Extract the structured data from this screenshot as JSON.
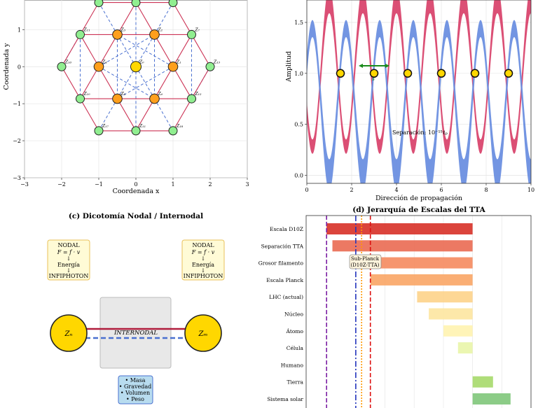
{
  "chart_data": [
    {
      "type": "scatter",
      "panel": "a",
      "title": "",
      "xlabel": "Coordenada x",
      "ylabel": "Coordenada y",
      "xlim": [
        -3,
        3
      ],
      "ylim": [
        -3,
        1.8
      ],
      "xticks": [
        "−3",
        "−2",
        "−1",
        "0",
        "1",
        "2",
        "3"
      ],
      "yticks": [
        "−3",
        "−2",
        "−1",
        "0",
        "1"
      ],
      "colors": {
        "center": "#ffd700",
        "inner": "#ff9f1c",
        "outer": "#90ee90",
        "triangle": "#cc3355",
        "dashed": "#4a70d0"
      },
      "nodes": [
        {
          "id": "Z0",
          "label": "Z₀",
          "x": 0,
          "y": 0,
          "ring": "center"
        },
        {
          "id": "Z1",
          "label": "Z₁",
          "x": 1,
          "y": 0,
          "ring": "inner"
        },
        {
          "id": "Z2",
          "label": "Z₂",
          "x": 0.5,
          "y": 0.866,
          "ring": "inner"
        },
        {
          "id": "Z3",
          "label": "Z₃",
          "x": -0.5,
          "y": 0.866,
          "ring": "inner"
        },
        {
          "id": "Z4",
          "label": "Z₄",
          "x": -1,
          "y": 0,
          "ring": "inner"
        },
        {
          "id": "Z5",
          "label": "Z₅",
          "x": -0.5,
          "y": -0.866,
          "ring": "inner"
        },
        {
          "id": "Z6",
          "label": "Z₆",
          "x": 0.5,
          "y": -0.866,
          "ring": "inner"
        },
        {
          "id": "Z7",
          "label": "Z₇",
          "x": 1.5,
          "y": 0.866,
          "ring": "outer"
        },
        {
          "id": "Z8",
          "label": "Z₈",
          "x": 1,
          "y": 1.732,
          "ring": "outer"
        },
        {
          "id": "Z9",
          "label": "Z₉",
          "x": 0,
          "y": 1.732,
          "ring": "outer"
        },
        {
          "id": "Z10",
          "label": "Z₁₀",
          "x": -1,
          "y": 1.732,
          "ring": "outer"
        },
        {
          "id": "Z11",
          "label": "Z₁₁",
          "x": -1.5,
          "y": 0.866,
          "ring": "outer"
        },
        {
          "id": "Z12",
          "label": "Z₁₂",
          "x": 1.5,
          "y": -0.866,
          "ring": "outer"
        },
        {
          "id": "Z13",
          "label": "Z₁₃",
          "x": 2,
          "y": 0,
          "ring": "outer"
        },
        {
          "id": "Z16",
          "label": "Z₁₆",
          "x": -2,
          "y": 0,
          "ring": "outer"
        },
        {
          "id": "Z10b",
          "label": "Z₁₀",
          "x": -1.5,
          "y": -0.866,
          "ring": "outer"
        },
        {
          "id": "Z17",
          "label": "Z₁₇",
          "x": -1,
          "y": -1.732,
          "ring": "outer"
        },
        {
          "id": "Z11b",
          "label": "Z₁₁",
          "x": 0,
          "y": -1.732,
          "ring": "outer"
        },
        {
          "id": "Z18",
          "label": "Z₁₈",
          "x": 1,
          "y": -1.732,
          "ring": "outer"
        }
      ],
      "solid_edges": [
        [
          "Z2",
          "Z3"
        ],
        [
          "Z3",
          "Z4"
        ],
        [
          "Z4",
          "Z5"
        ],
        [
          "Z5",
          "Z6"
        ],
        [
          "Z6",
          "Z1"
        ],
        [
          "Z1",
          "Z2"
        ],
        [
          "Z3",
          "Z9"
        ],
        [
          "Z9",
          "Z2"
        ],
        [
          "Z2",
          "Z7"
        ],
        [
          "Z7",
          "Z1"
        ],
        [
          "Z1",
          "Z12"
        ],
        [
          "Z12",
          "Z6"
        ],
        [
          "Z6",
          "Z11b"
        ],
        [
          "Z11b",
          "Z5"
        ],
        [
          "Z5",
          "Z10b"
        ],
        [
          "Z10b",
          "Z4"
        ],
        [
          "Z4",
          "Z11"
        ],
        [
          "Z11",
          "Z3"
        ],
        [
          "Z9",
          "Z10"
        ],
        [
          "Z9",
          "Z8"
        ],
        [
          "Z7",
          "Z13"
        ],
        [
          "Z13",
          "Z12"
        ],
        [
          "Z11b",
          "Z18"
        ],
        [
          "Z11b",
          "Z17"
        ],
        [
          "Z11",
          "Z16"
        ],
        [
          "Z16",
          "Z10b"
        ],
        [
          "Z12",
          "Z18"
        ],
        [
          "Z10b",
          "Z17"
        ],
        [
          "Z7",
          "Z8"
        ],
        [
          "Z11",
          "Z10"
        ]
      ],
      "dashed_edges": [
        [
          "Z0",
          "Z2"
        ],
        [
          "Z0",
          "Z3"
        ],
        [
          "Z0",
          "Z5"
        ],
        [
          "Z0",
          "Z6"
        ],
        [
          "Z3",
          "Z5"
        ],
        [
          "Z2",
          "Z6"
        ],
        [
          "Z4",
          "Z2"
        ],
        [
          "Z4",
          "Z6"
        ],
        [
          "Z1",
          "Z3"
        ],
        [
          "Z1",
          "Z5"
        ],
        [
          "Z10",
          "Z3"
        ],
        [
          "Z8",
          "Z2"
        ],
        [
          "Z11",
          "Z16"
        ],
        [
          "Z12",
          "Z13"
        ],
        [
          "Z17",
          "Z5"
        ],
        [
          "Z18",
          "Z6"
        ],
        [
          "Z11",
          "Z10b"
        ],
        [
          "Z7",
          "Z12"
        ],
        [
          "Z9",
          "Z0"
        ],
        [
          "Z0",
          "Z11b"
        ]
      ]
    },
    {
      "type": "line",
      "panel": "b",
      "title": "",
      "xlabel": "Dirección de propagación",
      "ylabel": "Amplitud",
      "xlim": [
        0,
        10
      ],
      "ylim": [
        -0.08,
        1.72
      ],
      "xticks": [
        "0",
        "2",
        "4",
        "6",
        "8",
        "10"
      ],
      "yticks": [
        "0.0",
        "0.5",
        "1.0",
        "1.5"
      ],
      "series": [
        {
          "name": "red",
          "color": "#d9466e",
          "center": 1.0,
          "amplitude": 0.72,
          "period": 1.5,
          "phase": 1.0,
          "band": 0.05
        },
        {
          "name": "blue",
          "color": "#6c8fe0",
          "center": 0.72,
          "amplitude": -0.72,
          "period": 1.5,
          "phase": 1.0,
          "band": 0.06
        }
      ],
      "points": {
        "x": [
          1.5,
          3.0,
          4.5,
          6.0,
          7.5,
          9.0
        ],
        "y": 1.0
      },
      "separation_label": "Separación: 10⁻¹⁵ℓₚ",
      "arrow_label": "s"
    },
    {
      "type": "diagram",
      "panel": "c",
      "title": "(c) Dicotomía Nodal / Internodal",
      "box_text": [
        "NODAL",
        "F = f · v",
        "↓",
        "Energía",
        "↓",
        "INFIPHOTON"
      ],
      "left_node": "Zₙ",
      "right_node": "Zₘ",
      "internodal_label": "INTERNODAL",
      "bottom_box": [
        "• Masa",
        "• Gravedad",
        "• Volumen",
        "• Peso"
      ]
    },
    {
      "type": "bar",
      "panel": "d",
      "title": "(d) Jerarquía de Escalas del TTA",
      "categories": [
        "Escala D10Z",
        "Separación TTA",
        "Grosor filamento",
        "Escala Planck",
        "LHC (actual)",
        "Núcleo",
        "Átomo",
        "Célula",
        "Humano",
        "Tierra",
        "Sistema solar"
      ],
      "log10_values": [
        -50,
        -48,
        -36,
        -35,
        -19,
        -15,
        -10,
        -5,
        0,
        7,
        13
      ],
      "bar_colors": [
        "#d73027",
        "#ea6a52",
        "#f58a5e",
        "#f9a565",
        "#fdd38a",
        "#fde6a0",
        "#fff3b0",
        "#e9f5a8",
        "#d0ecb0",
        "#a6d96a",
        "#7fc77a"
      ],
      "xlim": [
        -57,
        20
      ],
      "vlines": [
        {
          "name": "D10Z",
          "value": -50,
          "color": "#7b1fa2",
          "style": "dashed"
        },
        {
          "name": "Sub-Planck",
          "value": -40,
          "color": "#2233bb",
          "style": "dashdot"
        },
        {
          "name": "orange",
          "value": -38,
          "color": "#ff9900",
          "style": "dotted"
        },
        {
          "name": "Planck",
          "value": -35,
          "color": "#dd1111",
          "style": "dashed"
        }
      ],
      "annotation": [
        "Sub-Planck",
        "(D10Z-TTA)"
      ]
    }
  ]
}
